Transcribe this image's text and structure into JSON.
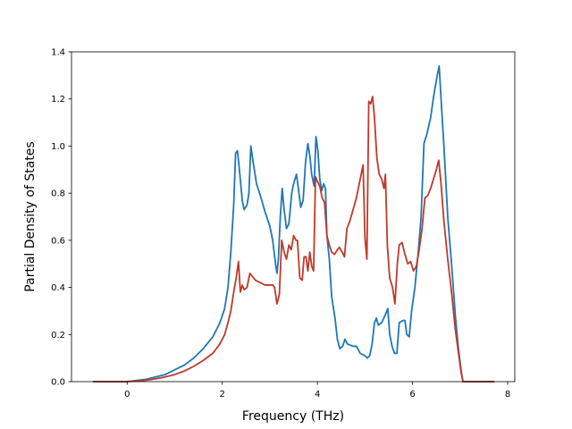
{
  "chart_data": {
    "type": "line",
    "title": "",
    "xlabel": "Frequency (THz)",
    "ylabel": "Partial Density of States",
    "xlim": [
      -1.17,
      8.15
    ],
    "ylim": [
      0,
      1.4
    ],
    "xticks": [
      0,
      2,
      4,
      6,
      8
    ],
    "yticks": [
      0.0,
      0.2,
      0.4,
      0.6,
      0.8,
      1.0,
      1.2,
      1.4
    ],
    "xtick_labels": [
      "0",
      "2",
      "4",
      "6",
      "8"
    ],
    "ytick_labels": [
      "0.0",
      "0.2",
      "0.4",
      "0.6",
      "0.8",
      "1.0",
      "1.2",
      "1.4"
    ],
    "grid": false,
    "legend": null,
    "series": [
      {
        "color": "#1f77b4",
        "points": [
          [
            -0.72,
            0.0
          ],
          [
            0.0,
            0.0
          ],
          [
            0.2,
            0.005
          ],
          [
            0.4,
            0.01
          ],
          [
            0.6,
            0.02
          ],
          [
            0.8,
            0.03
          ],
          [
            1.0,
            0.05
          ],
          [
            1.2,
            0.07
          ],
          [
            1.4,
            0.1
          ],
          [
            1.6,
            0.14
          ],
          [
            1.8,
            0.19
          ],
          [
            1.95,
            0.25
          ],
          [
            2.05,
            0.31
          ],
          [
            2.12,
            0.4
          ],
          [
            2.18,
            0.55
          ],
          [
            2.24,
            0.75
          ],
          [
            2.28,
            0.97
          ],
          [
            2.32,
            0.98
          ],
          [
            2.36,
            0.9
          ],
          [
            2.42,
            0.77
          ],
          [
            2.46,
            0.73
          ],
          [
            2.52,
            0.75
          ],
          [
            2.56,
            0.8
          ],
          [
            2.6,
            1.0
          ],
          [
            2.65,
            0.93
          ],
          [
            2.72,
            0.84
          ],
          [
            2.8,
            0.79
          ],
          [
            2.9,
            0.72
          ],
          [
            3.0,
            0.66
          ],
          [
            3.06,
            0.6
          ],
          [
            3.12,
            0.5
          ],
          [
            3.15,
            0.46
          ],
          [
            3.18,
            0.52
          ],
          [
            3.22,
            0.7
          ],
          [
            3.26,
            0.82
          ],
          [
            3.3,
            0.73
          ],
          [
            3.35,
            0.65
          ],
          [
            3.4,
            0.67
          ],
          [
            3.46,
            0.8
          ],
          [
            3.5,
            0.84
          ],
          [
            3.56,
            0.88
          ],
          [
            3.6,
            0.82
          ],
          [
            3.65,
            0.74
          ],
          [
            3.7,
            0.77
          ],
          [
            3.75,
            0.93
          ],
          [
            3.8,
            1.01
          ],
          [
            3.84,
            0.96
          ],
          [
            3.88,
            0.88
          ],
          [
            3.93,
            0.83
          ],
          [
            3.97,
            1.04
          ],
          [
            4.01,
            0.98
          ],
          [
            4.05,
            0.86
          ],
          [
            4.09,
            0.81
          ],
          [
            4.13,
            0.84
          ],
          [
            4.17,
            0.82
          ],
          [
            4.2,
            0.62
          ],
          [
            4.25,
            0.52
          ],
          [
            4.3,
            0.36
          ],
          [
            4.37,
            0.27
          ],
          [
            4.42,
            0.18
          ],
          [
            4.47,
            0.14
          ],
          [
            4.53,
            0.15
          ],
          [
            4.58,
            0.18
          ],
          [
            4.63,
            0.16
          ],
          [
            4.75,
            0.15
          ],
          [
            4.82,
            0.15
          ],
          [
            4.9,
            0.12
          ],
          [
            5.0,
            0.11
          ],
          [
            5.05,
            0.1
          ],
          [
            5.1,
            0.11
          ],
          [
            5.15,
            0.16
          ],
          [
            5.2,
            0.25
          ],
          [
            5.24,
            0.27
          ],
          [
            5.28,
            0.24
          ],
          [
            5.35,
            0.25
          ],
          [
            5.42,
            0.28
          ],
          [
            5.48,
            0.31
          ],
          [
            5.52,
            0.2
          ],
          [
            5.57,
            0.15
          ],
          [
            5.62,
            0.12
          ],
          [
            5.67,
            0.12
          ],
          [
            5.72,
            0.25
          ],
          [
            5.8,
            0.26
          ],
          [
            5.84,
            0.26
          ],
          [
            5.88,
            0.2
          ],
          [
            5.93,
            0.19
          ],
          [
            5.98,
            0.3
          ],
          [
            6.05,
            0.4
          ],
          [
            6.12,
            0.55
          ],
          [
            6.18,
            0.7
          ],
          [
            6.24,
            1.01
          ],
          [
            6.3,
            1.05
          ],
          [
            6.38,
            1.12
          ],
          [
            6.45,
            1.22
          ],
          [
            6.52,
            1.3
          ],
          [
            6.56,
            1.34
          ],
          [
            6.6,
            1.2
          ],
          [
            6.66,
            1.0
          ],
          [
            6.74,
            0.7
          ],
          [
            6.82,
            0.5
          ],
          [
            6.9,
            0.28
          ],
          [
            6.96,
            0.15
          ],
          [
            7.02,
            0.05
          ],
          [
            7.06,
            0.0
          ],
          [
            7.72,
            0.0
          ]
        ]
      },
      {
        "color": "#c0392b",
        "points": [
          [
            -0.72,
            0.0
          ],
          [
            0.0,
            0.0
          ],
          [
            0.2,
            0.003
          ],
          [
            0.4,
            0.006
          ],
          [
            0.6,
            0.012
          ],
          [
            0.8,
            0.02
          ],
          [
            1.0,
            0.03
          ],
          [
            1.2,
            0.045
          ],
          [
            1.4,
            0.065
          ],
          [
            1.6,
            0.09
          ],
          [
            1.8,
            0.12
          ],
          [
            1.95,
            0.16
          ],
          [
            2.05,
            0.2
          ],
          [
            2.12,
            0.25
          ],
          [
            2.18,
            0.3
          ],
          [
            2.24,
            0.38
          ],
          [
            2.3,
            0.45
          ],
          [
            2.34,
            0.51
          ],
          [
            2.38,
            0.38
          ],
          [
            2.42,
            0.41
          ],
          [
            2.46,
            0.39
          ],
          [
            2.52,
            0.4
          ],
          [
            2.58,
            0.46
          ],
          [
            2.62,
            0.45
          ],
          [
            2.7,
            0.43
          ],
          [
            2.8,
            0.42
          ],
          [
            2.9,
            0.41
          ],
          [
            3.0,
            0.41
          ],
          [
            3.06,
            0.41
          ],
          [
            3.1,
            0.4
          ],
          [
            3.15,
            0.33
          ],
          [
            3.2,
            0.37
          ],
          [
            3.25,
            0.6
          ],
          [
            3.3,
            0.55
          ],
          [
            3.35,
            0.52
          ],
          [
            3.4,
            0.58
          ],
          [
            3.45,
            0.56
          ],
          [
            3.5,
            0.62
          ],
          [
            3.55,
            0.6
          ],
          [
            3.58,
            0.6
          ],
          [
            3.63,
            0.44
          ],
          [
            3.68,
            0.43
          ],
          [
            3.72,
            0.53
          ],
          [
            3.76,
            0.53
          ],
          [
            3.8,
            0.47
          ],
          [
            3.84,
            0.55
          ],
          [
            3.88,
            0.49
          ],
          [
            3.92,
            0.47
          ],
          [
            3.96,
            0.87
          ],
          [
            4.0,
            0.85
          ],
          [
            4.05,
            0.83
          ],
          [
            4.1,
            0.78
          ],
          [
            4.15,
            0.76
          ],
          [
            4.2,
            0.62
          ],
          [
            4.25,
            0.58
          ],
          [
            4.3,
            0.55
          ],
          [
            4.36,
            0.54
          ],
          [
            4.42,
            0.56
          ],
          [
            4.46,
            0.57
          ],
          [
            4.52,
            0.55
          ],
          [
            4.57,
            0.53
          ],
          [
            4.62,
            0.65
          ],
          [
            4.68,
            0.68
          ],
          [
            4.75,
            0.73
          ],
          [
            4.82,
            0.78
          ],
          [
            4.9,
            0.86
          ],
          [
            4.96,
            0.92
          ],
          [
            5.0,
            0.61
          ],
          [
            5.04,
            0.52
          ],
          [
            5.08,
            1.19
          ],
          [
            5.12,
            1.18
          ],
          [
            5.16,
            1.21
          ],
          [
            5.2,
            1.12
          ],
          [
            5.25,
            0.95
          ],
          [
            5.3,
            0.88
          ],
          [
            5.35,
            0.86
          ],
          [
            5.4,
            0.82
          ],
          [
            5.43,
            0.88
          ],
          [
            5.47,
            0.58
          ],
          [
            5.52,
            0.44
          ],
          [
            5.58,
            0.4
          ],
          [
            5.63,
            0.33
          ],
          [
            5.68,
            0.5
          ],
          [
            5.72,
            0.58
          ],
          [
            5.78,
            0.59
          ],
          [
            5.84,
            0.54
          ],
          [
            5.9,
            0.5
          ],
          [
            5.96,
            0.51
          ],
          [
            6.02,
            0.47
          ],
          [
            6.08,
            0.49
          ],
          [
            6.14,
            0.56
          ],
          [
            6.2,
            0.65
          ],
          [
            6.26,
            0.78
          ],
          [
            6.32,
            0.79
          ],
          [
            6.38,
            0.82
          ],
          [
            6.44,
            0.86
          ],
          [
            6.5,
            0.9
          ],
          [
            6.55,
            0.94
          ],
          [
            6.6,
            0.84
          ],
          [
            6.66,
            0.68
          ],
          [
            6.74,
            0.52
          ],
          [
            6.82,
            0.38
          ],
          [
            6.9,
            0.22
          ],
          [
            6.96,
            0.13
          ],
          [
            7.02,
            0.04
          ],
          [
            7.06,
            0.0
          ],
          [
            7.72,
            0.0
          ]
        ]
      }
    ]
  }
}
